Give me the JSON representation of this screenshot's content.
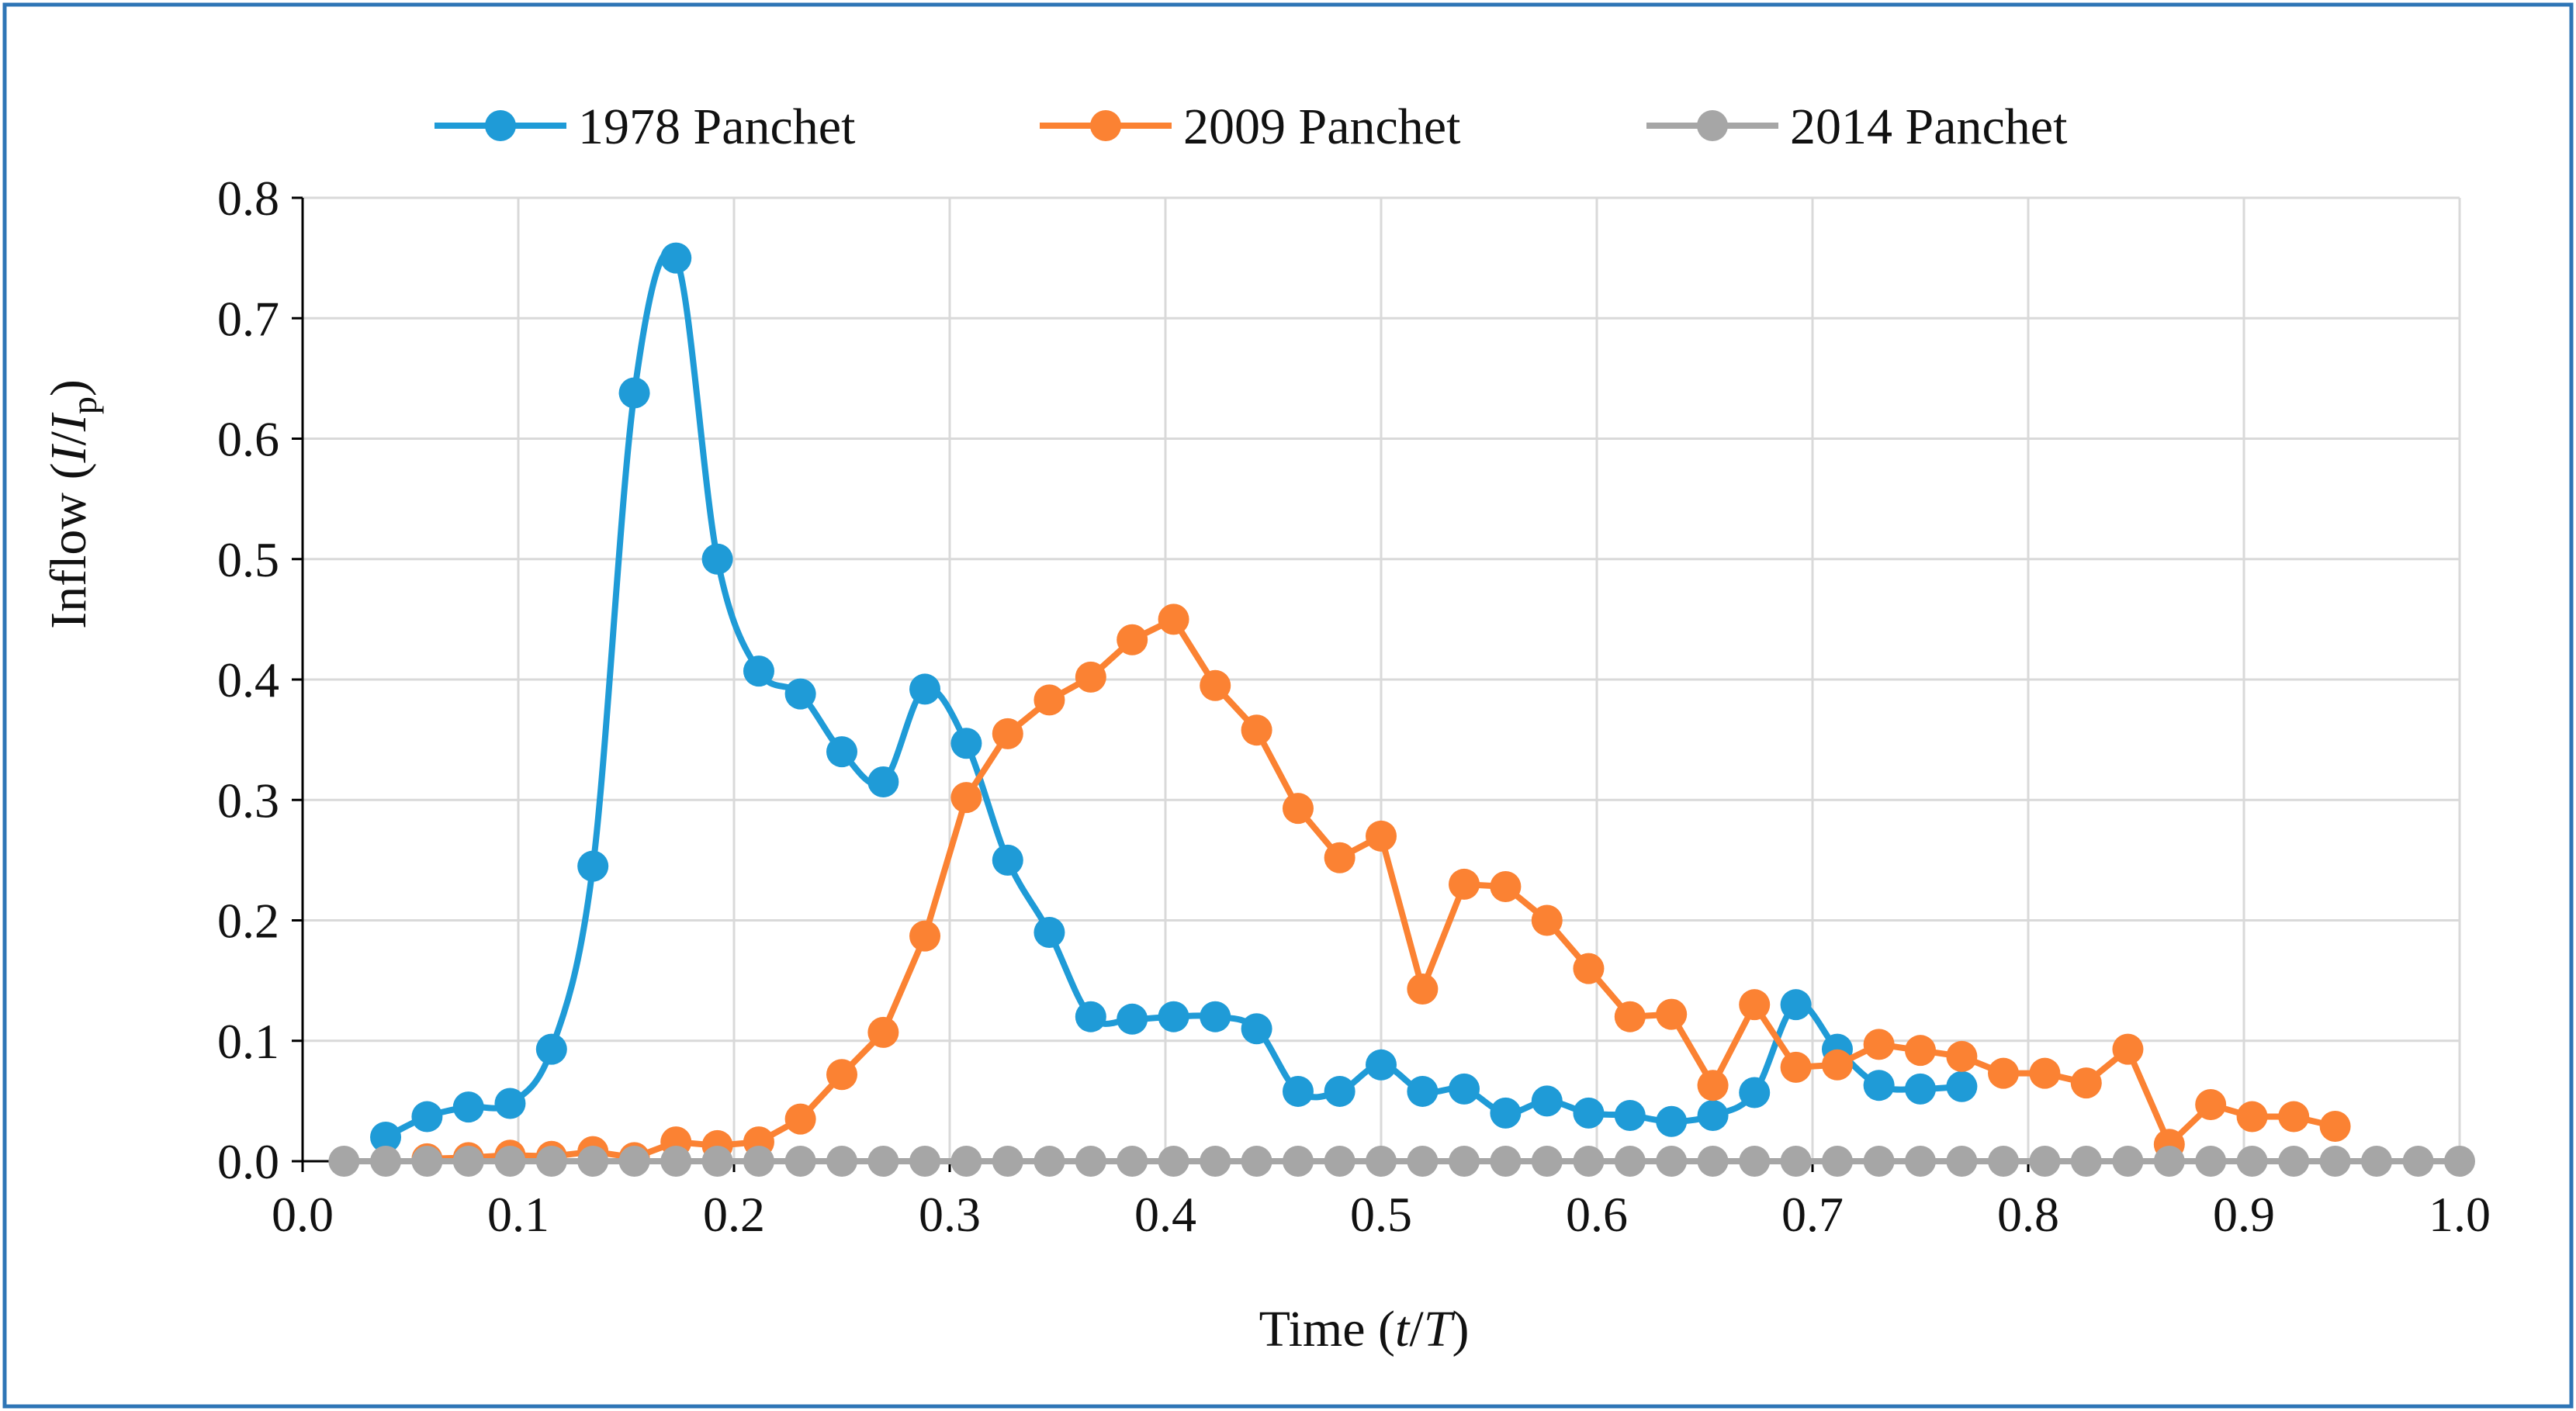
{
  "chart_data": {
    "type": "line",
    "title": "",
    "xlabel": "Time (t/T)",
    "xlabel_parts": {
      "prefix": "Time (",
      "t": "t",
      "slash": "/",
      "T": "T",
      "suffix": ")"
    },
    "ylabel": "Inflow (I/Ip)",
    "ylabel_parts": {
      "prefix": "Inflow (",
      "I": "I",
      "slash": "/",
      "Ip": "I",
      "sub": "p",
      "suffix": ")"
    },
    "xlim": [
      0,
      1
    ],
    "ylim": [
      0,
      0.8
    ],
    "xticks": [
      "0.0",
      "0.1",
      "0.2",
      "0.3",
      "0.4",
      "0.5",
      "0.6",
      "0.7",
      "0.8",
      "0.9",
      "1.0"
    ],
    "yticks": [
      "0.0",
      "0.1",
      "0.2",
      "0.3",
      "0.4",
      "0.5",
      "0.6",
      "0.7",
      "0.8"
    ],
    "grid": true,
    "legend_position": "top",
    "frame_color": "#2e75b6",
    "series": [
      {
        "name": "1978 Panchet",
        "color": "#1f9bd7",
        "smooth": true,
        "x": [
          0.0385,
          0.0577,
          0.0769,
          0.0962,
          0.1154,
          0.1346,
          0.1538,
          0.1731,
          0.1923,
          0.2115,
          0.2308,
          0.25,
          0.2692,
          0.2885,
          0.3077,
          0.3269,
          0.3462,
          0.3654,
          0.3846,
          0.4038,
          0.4231,
          0.4423,
          0.4615,
          0.4808,
          0.5,
          0.5192,
          0.5385,
          0.5577,
          0.5769,
          0.5962,
          0.6154,
          0.6346,
          0.6538,
          0.6731,
          0.6923,
          0.7115,
          0.7308,
          0.75,
          0.7692
        ],
        "y": [
          0.02,
          0.037,
          0.045,
          0.048,
          0.093,
          0.245,
          0.638,
          0.75,
          0.5,
          0.407,
          0.388,
          0.34,
          0.315,
          0.392,
          0.347,
          0.25,
          0.19,
          0.12,
          0.118,
          0.12,
          0.12,
          0.11,
          0.058,
          0.058,
          0.08,
          0.058,
          0.06,
          0.04,
          0.05,
          0.04,
          0.038,
          0.033,
          0.038,
          0.057,
          0.13,
          0.093,
          0.063,
          0.06,
          0.062
        ]
      },
      {
        "name": "2009 Panchet",
        "color": "#fb8233",
        "smooth": false,
        "x": [
          0.0577,
          0.0769,
          0.0962,
          0.1154,
          0.1346,
          0.1538,
          0.1731,
          0.1923,
          0.2115,
          0.2308,
          0.25,
          0.2692,
          0.2885,
          0.3077,
          0.3269,
          0.3462,
          0.3654,
          0.3846,
          0.4038,
          0.4231,
          0.4423,
          0.4615,
          0.4808,
          0.5,
          0.5192,
          0.5385,
          0.5577,
          0.5769,
          0.5962,
          0.6154,
          0.6346,
          0.6538,
          0.6731,
          0.6923,
          0.7115,
          0.7308,
          0.75,
          0.7692,
          0.7885,
          0.8077,
          0.8269,
          0.8462,
          0.8654,
          0.8846,
          0.9038,
          0.9231,
          0.9423
        ],
        "y": [
          0.002,
          0.003,
          0.005,
          0.004,
          0.008,
          0.003,
          0.016,
          0.013,
          0.016,
          0.035,
          0.072,
          0.107,
          0.187,
          0.302,
          0.355,
          0.383,
          0.402,
          0.433,
          0.45,
          0.395,
          0.358,
          0.293,
          0.252,
          0.27,
          0.143,
          0.23,
          0.228,
          0.2,
          0.16,
          0.12,
          0.122,
          0.063,
          0.13,
          0.078,
          0.08,
          0.097,
          0.092,
          0.087,
          0.073,
          0.073,
          0.065,
          0.093,
          0.014,
          0.047,
          0.037,
          0.037,
          0.029
        ]
      },
      {
        "name": "2014 Panchet",
        "color": "#a6a6a6",
        "smooth": false,
        "x": [
          0.0192,
          0.0385,
          0.0577,
          0.0769,
          0.0962,
          0.1154,
          0.1346,
          0.1538,
          0.1731,
          0.1923,
          0.2115,
          0.2308,
          0.25,
          0.2692,
          0.2885,
          0.3077,
          0.3269,
          0.3462,
          0.3654,
          0.3846,
          0.4038,
          0.4231,
          0.4423,
          0.4615,
          0.4808,
          0.5,
          0.5192,
          0.5385,
          0.5577,
          0.5769,
          0.5962,
          0.6154,
          0.6346,
          0.6538,
          0.6731,
          0.6923,
          0.7115,
          0.7308,
          0.75,
          0.7692,
          0.7885,
          0.8077,
          0.8269,
          0.8462,
          0.8654,
          0.8846,
          0.9038,
          0.9231,
          0.9423,
          0.9615,
          0.9808,
          1.0
        ],
        "y": [
          0,
          0,
          0,
          0,
          0,
          0,
          0,
          0,
          0,
          0,
          0,
          0,
          0,
          0,
          0,
          0,
          0,
          0,
          0,
          0,
          0,
          0,
          0,
          0,
          0,
          0,
          0,
          0,
          0,
          0,
          0,
          0,
          0,
          0,
          0,
          0,
          0,
          0,
          0,
          0,
          0,
          0,
          0,
          0,
          0,
          0,
          0,
          0,
          0,
          0,
          0,
          0
        ]
      }
    ]
  }
}
